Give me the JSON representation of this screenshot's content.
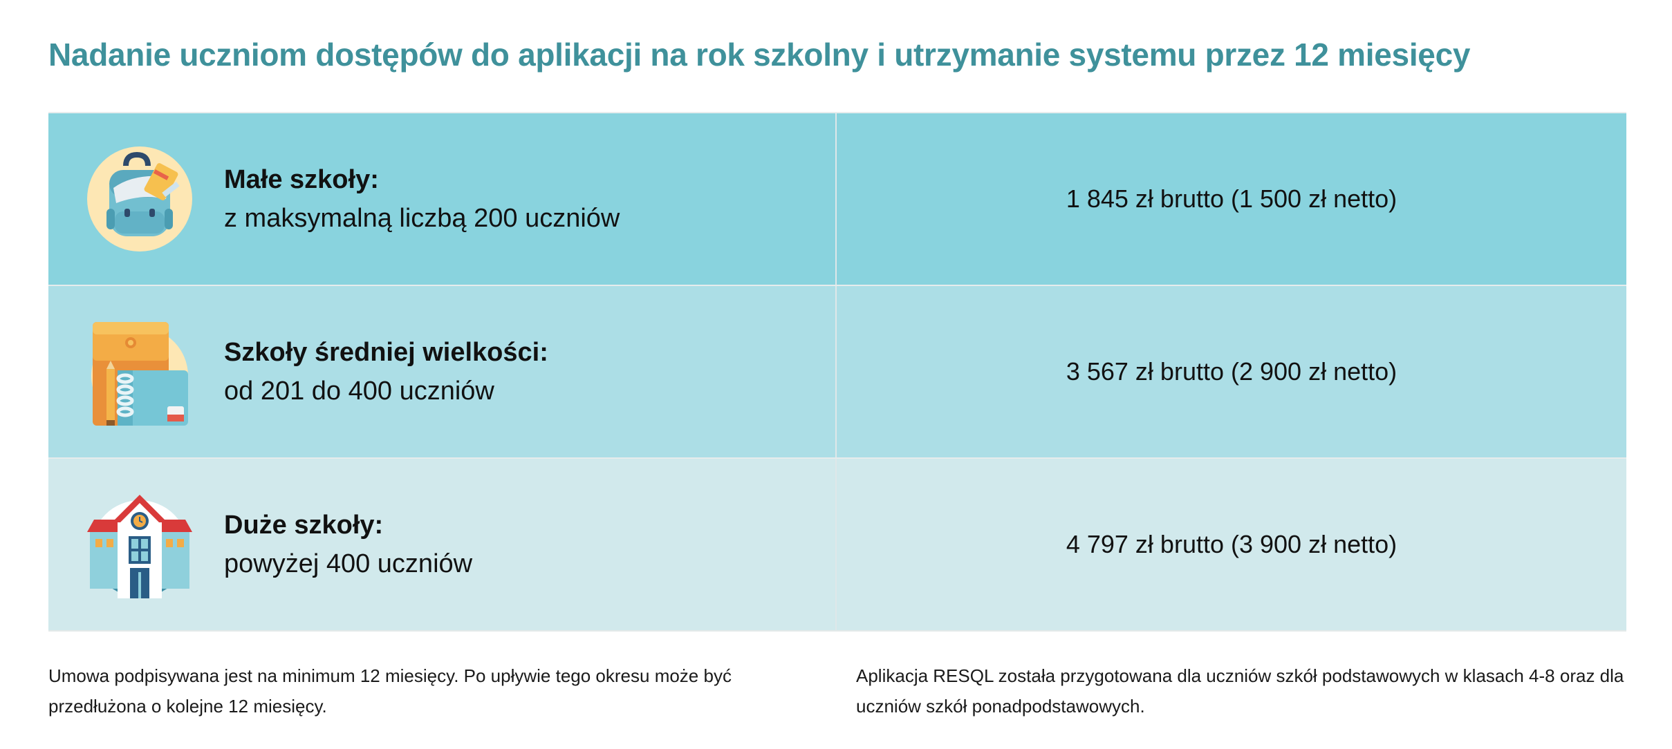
{
  "title": "Nadanie uczniom dostępów do aplikacji na rok szkolny i utrzymanie systemu przez 12 miesięcy",
  "tiers": [
    {
      "icon": "backpack-icon",
      "name": "Małe szkoły:",
      "description": "z maksymalną liczbą 200 uczniów",
      "price": "1 845 zł brutto (1 500 zł netto)"
    },
    {
      "icon": "notebook-folder-icon",
      "name": "Szkoły średniej wielkości:",
      "description": "od 201 do 400 uczniów",
      "price": "3 567 zł brutto (2 900 zł netto)"
    },
    {
      "icon": "school-building-icon",
      "name": "Duże szkoły:",
      "description": "powyżej 400 uczniów",
      "price": "4 797 zł brutto (3 900 zł netto)"
    }
  ],
  "notes": {
    "left": "Umowa podpisywana jest na minimum 12 miesięcy. Po upływie tego okresu może być przedłużona o kolejne 12 miesięcy.",
    "right": "Aplikacja RESQL została przygotowana dla uczniów szkół podstawowych w klasach 4-8 oraz dla uczniów szkół ponadpodstawowych."
  },
  "colors": {
    "title": "#3f919b",
    "row1": "#89d3de",
    "row2": "#acdee6",
    "row3": "#d1e9ec"
  }
}
